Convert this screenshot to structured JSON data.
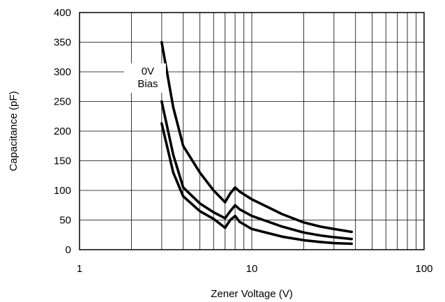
{
  "chart_data": {
    "type": "line",
    "title": "",
    "xlabel": "Zener Voltage (V)",
    "ylabel": "Capacitance (pF)",
    "x_scale": "log",
    "xlim": [
      1,
      100
    ],
    "ylim": [
      0,
      400
    ],
    "x_ticks": [
      1,
      10,
      100
    ],
    "x_tick_labels": [
      "1",
      "10",
      "100"
    ],
    "y_ticks": [
      0,
      50,
      100,
      150,
      200,
      250,
      300,
      350,
      400
    ],
    "y_tick_labels": [
      "0",
      "50",
      "100",
      "150",
      "200",
      "250",
      "300",
      "350",
      "400"
    ],
    "grid": true,
    "annotation": {
      "lines": [
        "0V",
        "Bias"
      ],
      "x": 2.4,
      "y": 300
    },
    "series": [
      {
        "x": [
          3.0,
          3.5,
          4.0,
          5.0,
          6.0,
          7.0,
          7.5,
          8.0,
          8.5,
          10,
          15,
          20,
          25,
          30,
          38
        ],
        "values": [
          350,
          240,
          175,
          130,
          100,
          80,
          95,
          105,
          98,
          85,
          60,
          46,
          39,
          35,
          30
        ]
      },
      {
        "x": [
          3.0,
          3.5,
          4.0,
          5.0,
          6.0,
          7.0,
          7.5,
          8.0,
          8.5,
          10,
          15,
          20,
          25,
          30,
          38
        ],
        "values": [
          250,
          160,
          105,
          78,
          63,
          53,
          65,
          75,
          68,
          57,
          39,
          29,
          24,
          21,
          18
        ]
      },
      {
        "x": [
          3.0,
          3.5,
          4.0,
          5.0,
          6.0,
          7.0,
          7.5,
          8.0,
          8.5,
          10,
          15,
          20,
          25,
          30,
          38
        ],
        "values": [
          213,
          130,
          90,
          65,
          52,
          37,
          50,
          57,
          47,
          35,
          22,
          16,
          13,
          11,
          10
        ]
      }
    ]
  }
}
